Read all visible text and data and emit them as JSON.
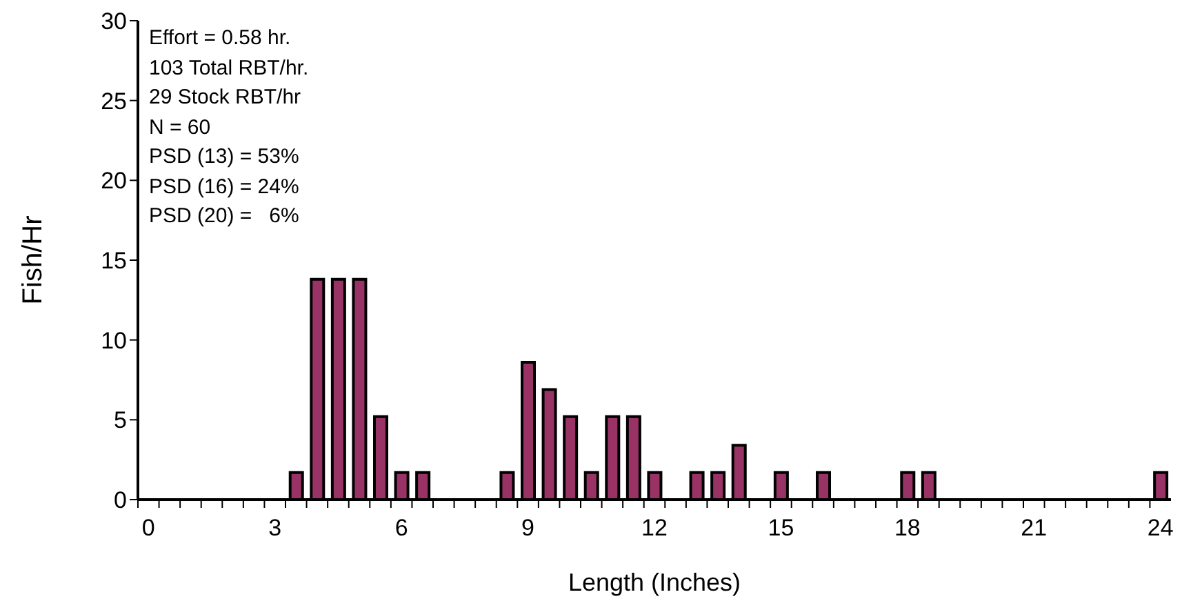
{
  "chart_data": {
    "type": "bar",
    "xlabel": "Length (Inches)",
    "ylabel": "Fish/Hr",
    "categories": [
      "0",
      null,
      null,
      null,
      null,
      null,
      "3",
      null,
      null,
      null,
      null,
      null,
      "6",
      null,
      null,
      null,
      null,
      null,
      "9",
      null,
      null,
      null,
      null,
      null,
      "12",
      null,
      null,
      null,
      null,
      null,
      "15",
      null,
      null,
      null,
      null,
      null,
      "18",
      null,
      null,
      null,
      null,
      null,
      "21",
      null,
      null,
      null,
      null,
      null,
      "24"
    ],
    "values": [
      0,
      0,
      0,
      0,
      0,
      0,
      0,
      1.7,
      13.8,
      13.8,
      13.8,
      5.2,
      1.7,
      1.7,
      0,
      0,
      0,
      1.7,
      8.6,
      6.9,
      5.2,
      1.7,
      5.2,
      5.2,
      1.7,
      0,
      1.7,
      1.7,
      3.4,
      0,
      1.7,
      0,
      1.7,
      0,
      0,
      0,
      1.7,
      1.7,
      0,
      0,
      0,
      0,
      0,
      0,
      0,
      0,
      0,
      0,
      1.7
    ],
    "color": "#993366",
    "ylim": [
      0,
      30
    ],
    "yticks": [
      0,
      5,
      10,
      15,
      20,
      25,
      30
    ],
    "grid": false,
    "legend": false,
    "annotations": [
      "Effort = 0.58 hr.",
      "103 Total RBT/hr.",
      "29 Stock RBT/hr",
      "N = 60",
      "PSD (13) = 53%",
      "PSD (16) = 24%",
      "PSD (20) =   6%"
    ]
  }
}
